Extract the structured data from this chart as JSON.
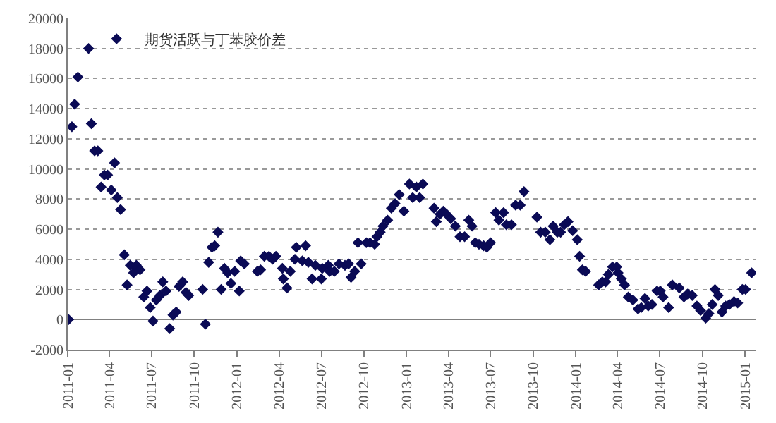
{
  "chart_data": {
    "type": "scatter",
    "marker": "diamond",
    "grid": "y",
    "legend": "top left",
    "xlim": [
      "2011-01-01",
      "2015-01-25"
    ],
    "ylim": [
      -2000,
      20000
    ],
    "yticks": [
      -2000,
      0,
      2000,
      4000,
      6000,
      8000,
      10000,
      12000,
      14000,
      16000,
      18000,
      20000
    ],
    "xticks": [
      {
        "value": "2011-01-01",
        "label": "2011-01"
      },
      {
        "value": "2011-04-01",
        "label": "2011-04"
      },
      {
        "value": "2011-07-01",
        "label": "2011-07"
      },
      {
        "value": "2011-10-01",
        "label": "2011-10"
      },
      {
        "value": "2012-01-01",
        "label": "2012-01"
      },
      {
        "value": "2012-04-01",
        "label": "2012-04"
      },
      {
        "value": "2012-07-01",
        "label": "2012-07"
      },
      {
        "value": "2012-10-01",
        "label": "2012-10"
      },
      {
        "value": "2013-01-01",
        "label": "2013-01"
      },
      {
        "value": "2013-04-01",
        "label": "2013-04"
      },
      {
        "value": "2013-07-01",
        "label": "2013-07"
      },
      {
        "value": "2013-10-01",
        "label": "2013-10"
      },
      {
        "value": "2014-01-01",
        "label": "2014-01"
      },
      {
        "value": "2014-04-01",
        "label": "2014-04"
      },
      {
        "value": "2014-07-01",
        "label": "2014-07"
      },
      {
        "value": "2014-10-01",
        "label": "2014-10"
      },
      {
        "value": "2015-01-01",
        "label": "2015-01"
      }
    ],
    "x": [
      "2011-01-03",
      "2011-01-10",
      "2011-01-16",
      "2011-01-23",
      "2011-02-15",
      "2011-02-21",
      "2011-02-28",
      "2011-03-07",
      "2011-03-14",
      "2011-03-21",
      "2011-03-28",
      "2011-04-05",
      "2011-04-12",
      "2011-04-18",
      "2011-04-25",
      "2011-05-03",
      "2011-05-09",
      "2011-05-16",
      "2011-05-23",
      "2011-05-29",
      "2011-06-06",
      "2011-06-14",
      "2011-06-21",
      "2011-06-28",
      "2011-07-04",
      "2011-07-11",
      "2011-07-19",
      "2011-07-25",
      "2011-08-01",
      "2011-08-09",
      "2011-08-16",
      "2011-08-23",
      "2011-08-29",
      "2011-09-06",
      "2011-09-13",
      "2011-09-19",
      "2011-10-19",
      "2011-10-25",
      "2011-11-01",
      "2011-11-08",
      "2011-11-14",
      "2011-11-21",
      "2011-11-28",
      "2011-12-05",
      "2011-12-12",
      "2011-12-19",
      "2011-12-27",
      "2012-01-06",
      "2012-01-09",
      "2012-01-17",
      "2012-02-14",
      "2012-02-21",
      "2012-02-29",
      "2012-03-10",
      "2012-03-18",
      "2012-03-25",
      "2012-04-08",
      "2012-04-10",
      "2012-04-18",
      "2012-04-25",
      "2012-05-05",
      "2012-05-08",
      "2012-05-21",
      "2012-05-28",
      "2012-06-03",
      "2012-06-11",
      "2012-06-18",
      "2012-07-01",
      "2012-07-03",
      "2012-07-16",
      "2012-07-19",
      "2012-07-29",
      "2012-08-08",
      "2012-08-21",
      "2012-08-29",
      "2012-09-03",
      "2012-09-11",
      "2012-09-18",
      "2012-09-25",
      "2012-10-06",
      "2012-10-14",
      "2012-10-24",
      "2012-10-29",
      "2012-11-05",
      "2012-11-11",
      "2012-11-21",
      "2012-11-29",
      "2012-12-07",
      "2012-12-16",
      "2012-12-26",
      "2013-01-07",
      "2013-01-14",
      "2013-01-22",
      "2013-01-29",
      "2013-02-05",
      "2013-03-01",
      "2013-03-06",
      "2013-03-14",
      "2013-03-21",
      "2013-03-28",
      "2013-04-06",
      "2013-04-16",
      "2013-04-26",
      "2013-05-06",
      "2013-05-15",
      "2013-05-22",
      "2013-05-29",
      "2013-06-06",
      "2013-06-16",
      "2013-06-23",
      "2013-07-01",
      "2013-07-12",
      "2013-07-19",
      "2013-07-29",
      "2013-08-04",
      "2013-08-15",
      "2013-08-24",
      "2013-09-03",
      "2013-09-11",
      "2013-10-09",
      "2013-10-17",
      "2013-10-27",
      "2013-11-06",
      "2013-11-13",
      "2013-11-22",
      "2013-11-29",
      "2013-12-07",
      "2013-12-15",
      "2013-12-25",
      "2014-01-04",
      "2014-01-09",
      "2014-01-15",
      "2014-01-22",
      "2014-02-19",
      "2014-02-27",
      "2014-03-06",
      "2014-03-12",
      "2014-03-21",
      "2014-03-30",
      "2014-04-02",
      "2014-04-09",
      "2014-04-16",
      "2014-04-24",
      "2014-05-04",
      "2014-05-15",
      "2014-05-22",
      "2014-05-30",
      "2014-06-06",
      "2014-06-14",
      "2014-06-25",
      "2014-07-02",
      "2014-07-08",
      "2014-07-20",
      "2014-07-28",
      "2014-08-12",
      "2014-08-22",
      "2014-08-30",
      "2014-09-09",
      "2014-09-19",
      "2014-09-27",
      "2014-10-08",
      "2014-10-15",
      "2014-10-22",
      "2014-10-28",
      "2014-11-04",
      "2014-11-12",
      "2014-11-20",
      "2014-11-28",
      "2014-12-08",
      "2014-12-16",
      "2014-12-26",
      "2015-01-02",
      "2015-01-15"
    ],
    "series": [
      {
        "name": "期货活跃与丁苯胶价差",
        "color": "#0a0a55",
        "values": [
          0,
          12800,
          14300,
          16100,
          18000,
          13000,
          11200,
          11200,
          8800,
          9600,
          9600,
          8600,
          10400,
          8100,
          7300,
          4300,
          2300,
          3600,
          3100,
          3600,
          3300,
          1500,
          1900,
          800,
          -100,
          1300,
          1600,
          2500,
          1900,
          -600,
          300,
          500,
          2200,
          2500,
          1800,
          1600,
          2000,
          -300,
          3800,
          4800,
          4900,
          5800,
          2000,
          3400,
          3100,
          2400,
          3200,
          1900,
          3900,
          3700,
          3200,
          3300,
          4200,
          4200,
          4000,
          4200,
          3400,
          2700,
          2100,
          3200,
          4000,
          4800,
          3900,
          4900,
          3800,
          2700,
          3600,
          2700,
          3400,
          3600,
          3200,
          3200,
          3700,
          3600,
          3700,
          2800,
          3200,
          5100,
          3700,
          5100,
          5100,
          5000,
          5500,
          5800,
          6200,
          6600,
          7400,
          7700,
          8300,
          7200,
          9000,
          8100,
          8800,
          8100,
          9000,
          7400,
          6500,
          7000,
          7200,
          7000,
          6700,
          6200,
          5500,
          5500,
          6600,
          6200,
          5100,
          5000,
          4900,
          4800,
          5100,
          7100,
          6600,
          7100,
          6300,
          6300,
          7600,
          7600,
          8500,
          6800,
          5800,
          5800,
          5300,
          6200,
          5800,
          5800,
          6300,
          6500,
          5900,
          5300,
          4200,
          3300,
          3200,
          2300,
          2500,
          2500,
          3000,
          3500,
          3500,
          3100,
          2700,
          2300,
          1500,
          1300,
          700,
          800,
          1400,
          900,
          1000,
          1900,
          1900,
          1500,
          800,
          2300,
          2100,
          1500,
          1700,
          1600,
          900,
          600,
          100,
          400,
          1000,
          2000,
          1600,
          500,
          900,
          1000,
          1200,
          1100,
          2000,
          2000,
          3100
        ]
      }
    ]
  }
}
